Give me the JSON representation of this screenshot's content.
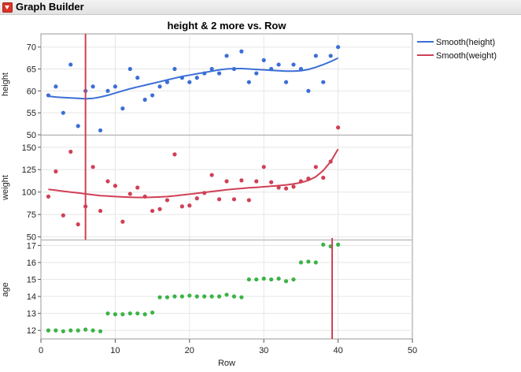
{
  "window": {
    "title": "Graph Builder"
  },
  "colors": {
    "height": "#3b6fd6",
    "weight": "#d04055",
    "age": "#3cb346",
    "grid": "#e6e6e6",
    "frame": "#9a9a9a"
  },
  "icons": {
    "disclosure": "red-triangle-menu-icon"
  },
  "chart_data": {
    "type": "scatter",
    "title": "height & 2 more vs. Row",
    "xlabel": "Row",
    "xlim": [
      0,
      50
    ],
    "xticks": [
      0,
      10,
      20,
      30,
      40,
      50
    ],
    "x": [
      1,
      2,
      3,
      4,
      5,
      6,
      7,
      8,
      9,
      10,
      11,
      12,
      13,
      14,
      15,
      16,
      17,
      18,
      19,
      20,
      21,
      22,
      23,
      24,
      25,
      26,
      27,
      28,
      29,
      30,
      31,
      32,
      33,
      34,
      35,
      36,
      37,
      38,
      39,
      40
    ],
    "panels": [
      {
        "ylabel": "height",
        "ylim": [
          50,
          73
        ],
        "yticks": [
          50,
          55,
          60,
          65,
          70
        ],
        "series": [
          {
            "values": [
              59,
              61,
              55,
              66,
              52,
              60,
              61,
              51,
              60,
              61,
              56,
              65,
              63,
              58,
              59,
              61,
              62,
              65,
              63,
              62,
              63,
              64,
              65,
              64,
              68,
              65,
              69,
              62,
              64,
              67,
              65,
              66,
              62,
              66,
              65,
              60,
              68,
              62,
              68,
              70
            ]
          }
        ],
        "smooth": {
          "name": "Smooth(height)",
          "values": [
            58.8,
            58.6,
            58.5,
            58.4,
            58.3,
            58.2,
            58.3,
            58.6,
            59.0,
            59.5,
            60.0,
            60.5,
            60.9,
            61.3,
            61.7,
            62.1,
            62.5,
            62.9,
            63.3,
            63.6,
            63.9,
            64.2,
            64.5,
            64.8,
            65.0,
            65.1,
            65.1,
            65.0,
            64.9,
            64.8,
            64.7,
            64.6,
            64.5,
            64.5,
            64.6,
            64.9,
            65.4,
            66.0,
            66.7,
            67.5
          ]
        }
      },
      {
        "ylabel": "weight",
        "ylim": [
          47,
          163
        ],
        "yticks": [
          50,
          75,
          100,
          125,
          150
        ],
        "series": [
          {
            "values": [
              95,
              123,
              74,
              145,
              64,
              84,
              128,
              79,
              112,
              107,
              67,
              98,
              105,
              95,
              79,
              81,
              91,
              142,
              84,
              85,
              93,
              99,
              119,
              92,
              112,
              92,
              113,
              91,
              112,
              128,
              111,
              105,
              104,
              106,
              112,
              115,
              128,
              116,
              134,
              172
            ]
          }
        ],
        "smooth": {
          "name": "Smooth(weight)",
          "values": [
            103,
            102,
            101,
            100,
            99,
            98,
            97,
            96,
            95.5,
            95,
            94.5,
            94.2,
            94,
            94,
            94.2,
            94.5,
            95,
            95.8,
            96.7,
            97.6,
            98.6,
            99.6,
            100.6,
            101.6,
            102.5,
            103.3,
            104,
            104.7,
            105.3,
            105.9,
            106.5,
            107.2,
            108,
            109,
            110.5,
            113,
            117,
            124,
            134,
            148
          ]
        }
      },
      {
        "ylabel": "age",
        "ylim": [
          11.5,
          17.3
        ],
        "yticks": [
          12,
          13,
          14,
          15,
          16,
          17
        ],
        "series": [
          {
            "values": [
              12,
              12,
              11.95,
              12,
              12,
              12.05,
              12,
              11.95,
              13,
              12.95,
              12.95,
              13,
              13,
              12.95,
              13.05,
              13.95,
              13.95,
              14,
              14,
              14.05,
              14,
              14,
              14,
              14,
              14.1,
              14,
              13.95,
              15,
              15,
              15.05,
              15,
              15.05,
              14.9,
              15,
              16,
              16.05,
              16,
              17.05,
              16.95,
              17.05
            ]
          }
        ]
      }
    ],
    "reference_lines": [
      {
        "panels": [
          0,
          1
        ],
        "x": 6
      },
      {
        "panels": [
          2
        ],
        "x": 39.2
      }
    ],
    "legend": {
      "position": "right",
      "entries": [
        "Smooth(height)",
        "Smooth(weight)"
      ]
    },
    "grid": true
  }
}
